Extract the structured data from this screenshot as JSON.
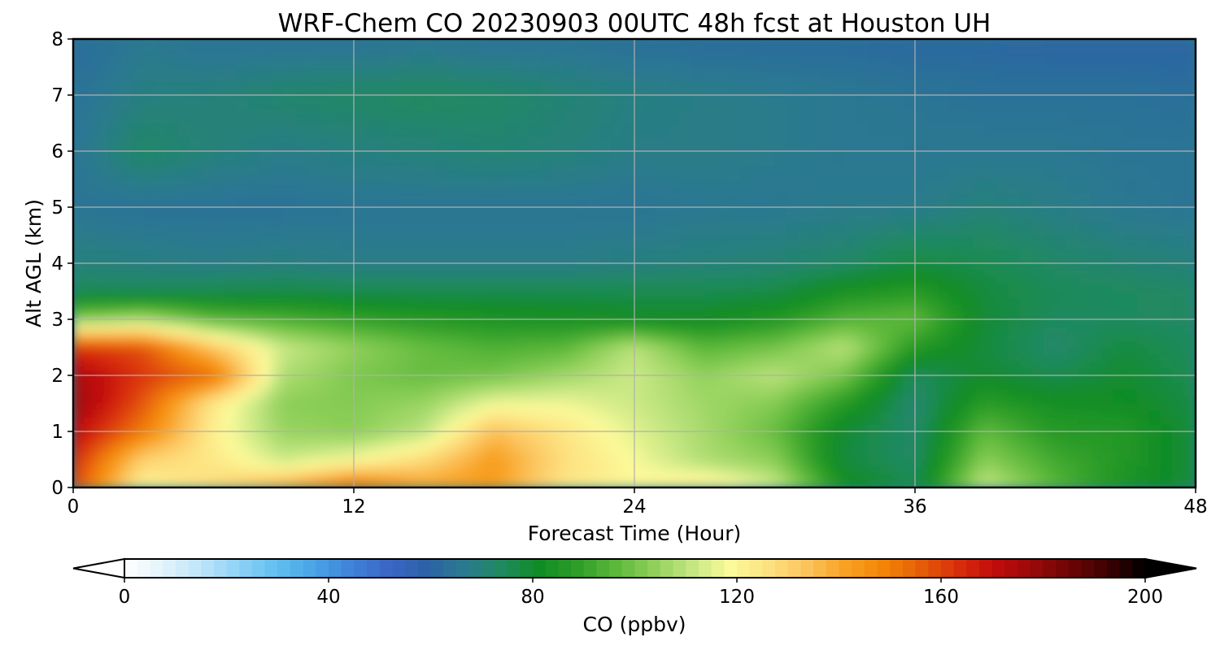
{
  "chart_data": {
    "type": "heatmap",
    "title": "WRF-Chem CO  20230903 00UTC 48h fcst at Houston UH",
    "xlabel": "Forecast Time (Hour)",
    "ylabel": "Alt AGL (km)",
    "xlim": [
      0,
      48
    ],
    "ylim": [
      0,
      8
    ],
    "xticks": [
      0,
      12,
      24,
      36,
      48
    ],
    "yticks": [
      0,
      1,
      2,
      3,
      4,
      5,
      6,
      7,
      8
    ],
    "grid": true,
    "colorbar": {
      "label": "CO  (ppbv)",
      "range": [
        0,
        200
      ],
      "ticks": [
        0,
        40,
        80,
        120,
        160,
        200
      ],
      "extend": "both",
      "orientation": "horizontal",
      "colors": [
        "#ffffff",
        "#e3f3fc",
        "#bfe6fa",
        "#8fd2f6",
        "#62bff0",
        "#4aa4e6",
        "#3f82d8",
        "#3b66c6",
        "#2d62a6",
        "#2b7a8f",
        "#1f8a5e",
        "#108c24",
        "#2f9e29",
        "#5cb83a",
        "#90d05a",
        "#c4e682",
        "#fbfa9a",
        "#fde281",
        "#fcc560",
        "#f8a326",
        "#f48708",
        "#e66008",
        "#d9300c",
        "#c10c0c",
        "#9a0a0a",
        "#6d0505",
        "#3d0101",
        "#000000"
      ]
    },
    "x": [
      0,
      3,
      6,
      9,
      12,
      15,
      18,
      21,
      24,
      27,
      30,
      33,
      36,
      39,
      42,
      45,
      48
    ],
    "y": [
      0,
      0.5,
      1,
      1.5,
      2,
      2.5,
      3,
      3.5,
      4,
      5,
      6,
      7,
      8
    ],
    "z": [
      [
        160,
        120,
        128,
        140,
        155,
        142,
        143,
        125,
        120,
        125,
        113,
        84,
        76,
        112,
        96,
        84,
        78
      ],
      [
        165,
        130,
        124,
        112,
        118,
        128,
        143,
        127,
        118,
        108,
        103,
        78,
        73,
        103,
        92,
        86,
        78
      ],
      [
        172,
        150,
        122,
        105,
        103,
        110,
        135,
        125,
        115,
        107,
        98,
        79,
        72,
        97,
        87,
        86,
        78
      ],
      [
        178,
        157,
        124,
        103,
        102,
        105,
        117,
        117,
        112,
        106,
        102,
        87,
        71,
        88,
        83,
        82,
        77
      ],
      [
        175,
        162,
        153,
        108,
        101,
        98,
        100,
        106,
        112,
        104,
        110,
        100,
        74,
        80,
        76,
        80,
        75
      ],
      [
        163,
        158,
        133,
        112,
        104,
        98,
        94,
        96,
        110,
        96,
        100,
        110,
        87,
        78,
        72,
        78,
        74
      ],
      [
        103,
        108,
        97,
        94,
        90,
        87,
        85,
        84,
        82,
        82,
        86,
        95,
        97,
        79,
        74,
        74,
        73
      ],
      [
        75,
        75,
        76,
        77,
        76,
        76,
        76,
        76,
        76,
        76,
        77,
        84,
        87,
        78,
        75,
        74,
        73
      ],
      [
        70,
        69,
        68,
        69,
        68,
        68,
        68,
        68,
        69,
        70,
        71,
        73,
        78,
        76,
        73,
        71,
        70
      ],
      [
        65,
        64,
        64,
        64,
        65,
        65,
        65,
        65,
        65,
        66,
        66,
        67,
        67,
        70,
        68,
        66,
        65
      ],
      [
        65,
        73,
        70,
        68,
        69,
        70,
        71,
        70,
        68,
        68,
        67,
        66,
        66,
        66,
        66,
        65,
        65
      ],
      [
        64,
        69,
        70,
        72,
        73,
        74,
        73,
        71,
        69,
        68,
        67,
        66,
        65,
        64,
        64,
        64,
        63
      ],
      [
        62,
        66,
        64,
        64,
        64,
        65,
        64,
        64,
        63,
        62,
        62,
        62,
        61,
        61,
        60,
        60,
        60
      ]
    ]
  }
}
